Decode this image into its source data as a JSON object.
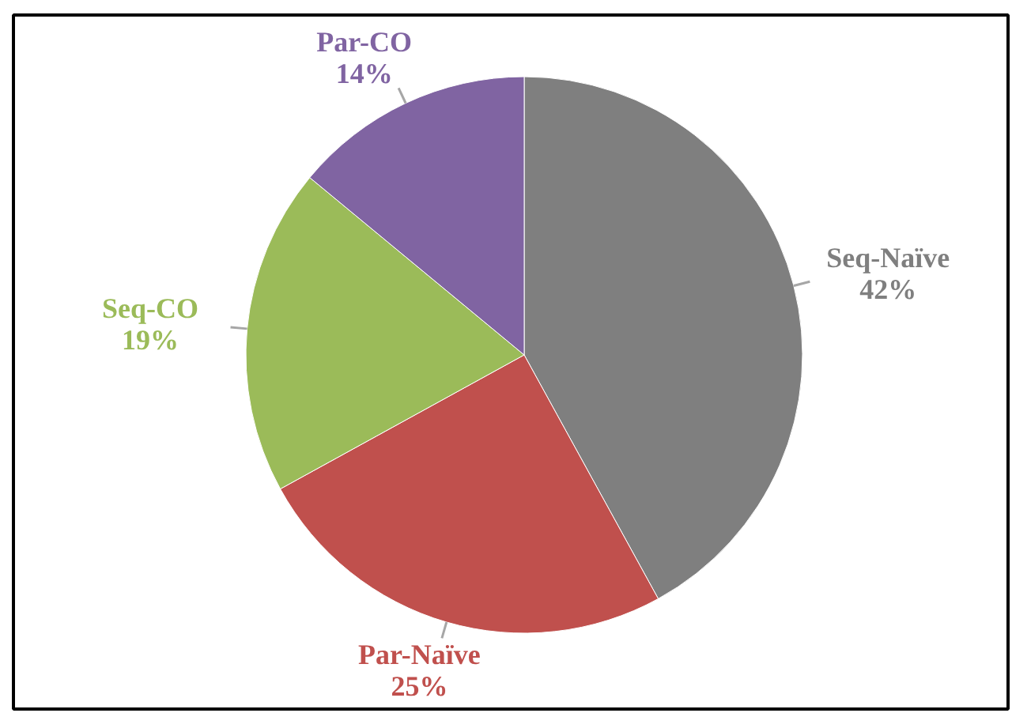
{
  "chart_data": {
    "type": "pie",
    "categories": [
      "Seq-Naïve",
      "Par-Naïve",
      "Seq-CO",
      "Par-CO"
    ],
    "values": [
      42,
      25,
      19,
      14
    ],
    "colors": [
      "#7f7f7f",
      "#c0504d",
      "#9bbb59",
      "#8064a2"
    ],
    "value_labels": [
      "42%",
      "25%",
      "19%",
      "14%"
    ]
  }
}
